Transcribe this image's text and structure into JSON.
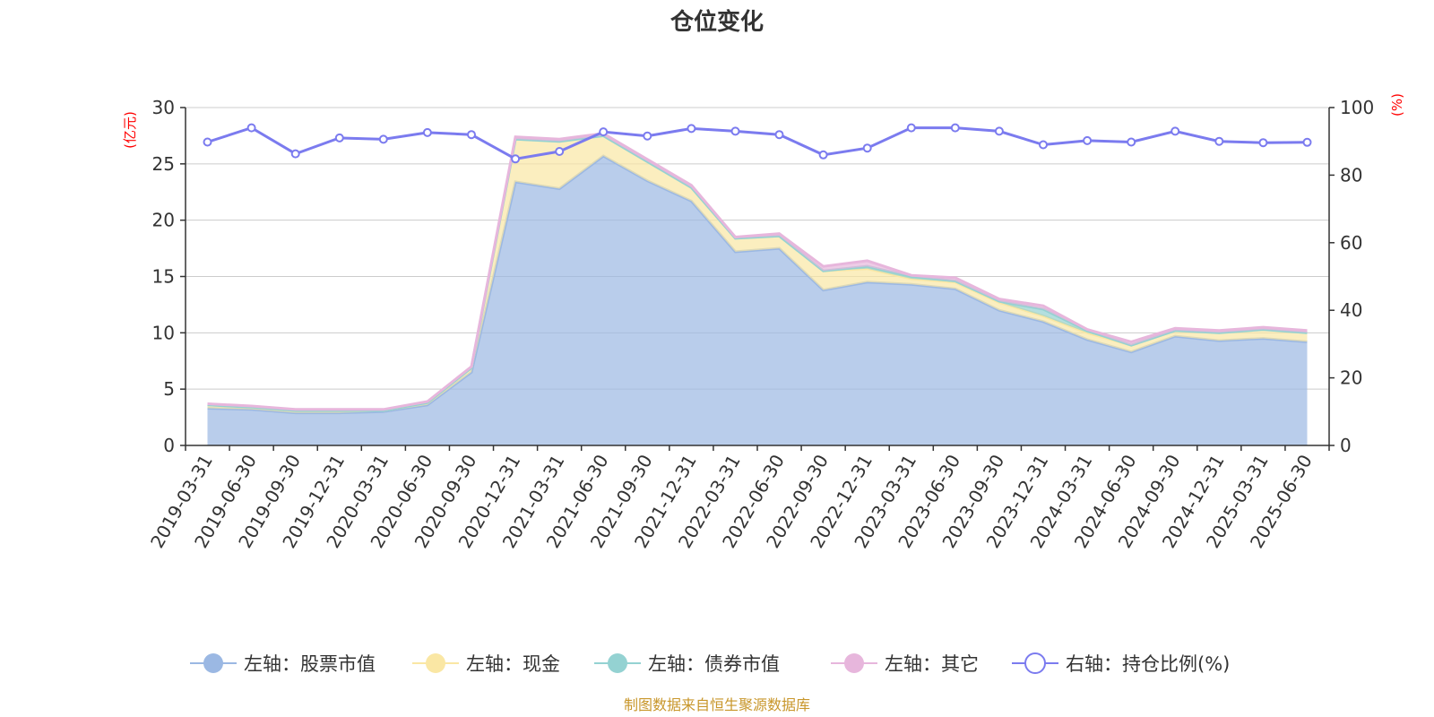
{
  "chart_data": {
    "type": "area",
    "title": "仓位变化",
    "left_axis_unit": "(亿元)",
    "right_axis_unit": "(%)",
    "categories": [
      "2019-03-31",
      "2019-06-30",
      "2019-09-30",
      "2019-12-31",
      "2020-03-31",
      "2020-06-30",
      "2020-09-30",
      "2020-12-31",
      "2021-03-31",
      "2021-06-30",
      "2021-09-30",
      "2021-12-31",
      "2022-03-31",
      "2022-06-30",
      "2022-09-30",
      "2022-12-31",
      "2023-03-31",
      "2023-06-30",
      "2023-09-30",
      "2023-12-31",
      "2024-03-31",
      "2024-06-30",
      "2024-09-30",
      "2024-12-31",
      "2025-03-31",
      "2025-06-30"
    ],
    "ylim_left": [
      0,
      30
    ],
    "yticks_left": [
      0,
      5,
      10,
      15,
      20,
      25,
      30
    ],
    "ylim_right": [
      0,
      100
    ],
    "yticks_right": [
      0,
      20,
      40,
      60,
      80,
      100
    ],
    "grid": true,
    "legend_position": "bottom",
    "series": [
      {
        "name": "左轴：股票市值",
        "axis": "left",
        "stack": true,
        "color": "#9bb8e3",
        "values": [
          3.3,
          3.2,
          2.9,
          2.9,
          3.0,
          3.6,
          6.5,
          23.4,
          22.8,
          25.7,
          23.5,
          21.7,
          17.2,
          17.5,
          13.8,
          14.5,
          14.3,
          13.9,
          12.0,
          11.0,
          9.4,
          8.3,
          9.7,
          9.3,
          9.5,
          9.2
        ]
      },
      {
        "name": "左轴：现金",
        "axis": "left",
        "stack": true,
        "color": "#fae7a4",
        "values": [
          0.3,
          0.2,
          0.2,
          0.2,
          0.1,
          0.2,
          0.4,
          3.8,
          4.2,
          1.8,
          1.7,
          1.2,
          1.2,
          1.1,
          1.7,
          1.2,
          0.5,
          0.6,
          0.7,
          0.5,
          0.6,
          0.6,
          0.5,
          0.7,
          0.8,
          0.8
        ]
      },
      {
        "name": "左轴：债券市值",
        "axis": "left",
        "stack": true,
        "color": "#94d2d2",
        "values": [
          0,
          0,
          0,
          0,
          0,
          0,
          0,
          0,
          0,
          0,
          0,
          0,
          0,
          0,
          0,
          0.2,
          0.2,
          0.1,
          0.1,
          0.6,
          0.2,
          0,
          0,
          0,
          0,
          0
        ]
      },
      {
        "name": "左轴：其它",
        "axis": "left",
        "stack": true,
        "color": "#e7b6dc",
        "values": [
          0.1,
          0.1,
          0.1,
          0.1,
          0.1,
          0.1,
          0.1,
          0.2,
          0.2,
          0.2,
          0.2,
          0.2,
          0.1,
          0.2,
          0.4,
          0.5,
          0.1,
          0.3,
          0.2,
          0.3,
          0.1,
          0.3,
          0.2,
          0.2,
          0.2,
          0.2
        ]
      },
      {
        "name": "右轴：持仓比例(%)",
        "axis": "right",
        "stack": false,
        "color": "#7b7bef",
        "values": [
          89.8,
          94.0,
          86.3,
          91.0,
          90.6,
          92.6,
          92.0,
          84.8,
          87.0,
          92.8,
          91.6,
          93.8,
          93.0,
          92.0,
          86.0,
          88.0,
          94.0,
          94.0,
          93.0,
          89.0,
          90.2,
          89.8,
          93.0,
          90.0,
          89.6,
          89.7
        ]
      }
    ]
  },
  "footer": {
    "source_text": "制图数据来自恒生聚源数据库"
  }
}
